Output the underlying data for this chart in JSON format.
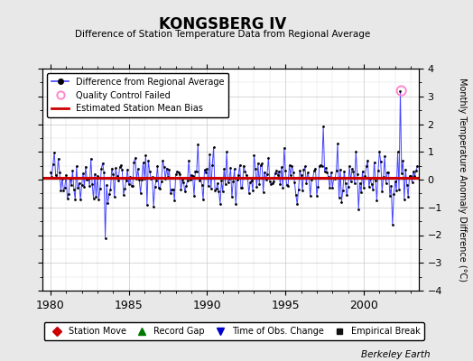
{
  "title": "KONGSBERG IV",
  "subtitle": "Difference of Station Temperature Data from Regional Average",
  "ylabel_right": "Monthly Temperature Anomaly Difference (°C)",
  "xlim": [
    1979.5,
    2003.5
  ],
  "ylim": [
    -4,
    4
  ],
  "bias_value": 0.05,
  "background_color": "#e8e8e8",
  "plot_bg_color": "#ffffff",
  "line_color": "#4444ff",
  "dot_color": "#000000",
  "bias_color": "#cc0000",
  "qc_marker_color": "#ff88cc",
  "qc_year": 2002.4,
  "qc_value": 3.2,
  "watermark": "Berkeley Earth",
  "seed": 42,
  "start_year": 1980,
  "n_months": 282
}
